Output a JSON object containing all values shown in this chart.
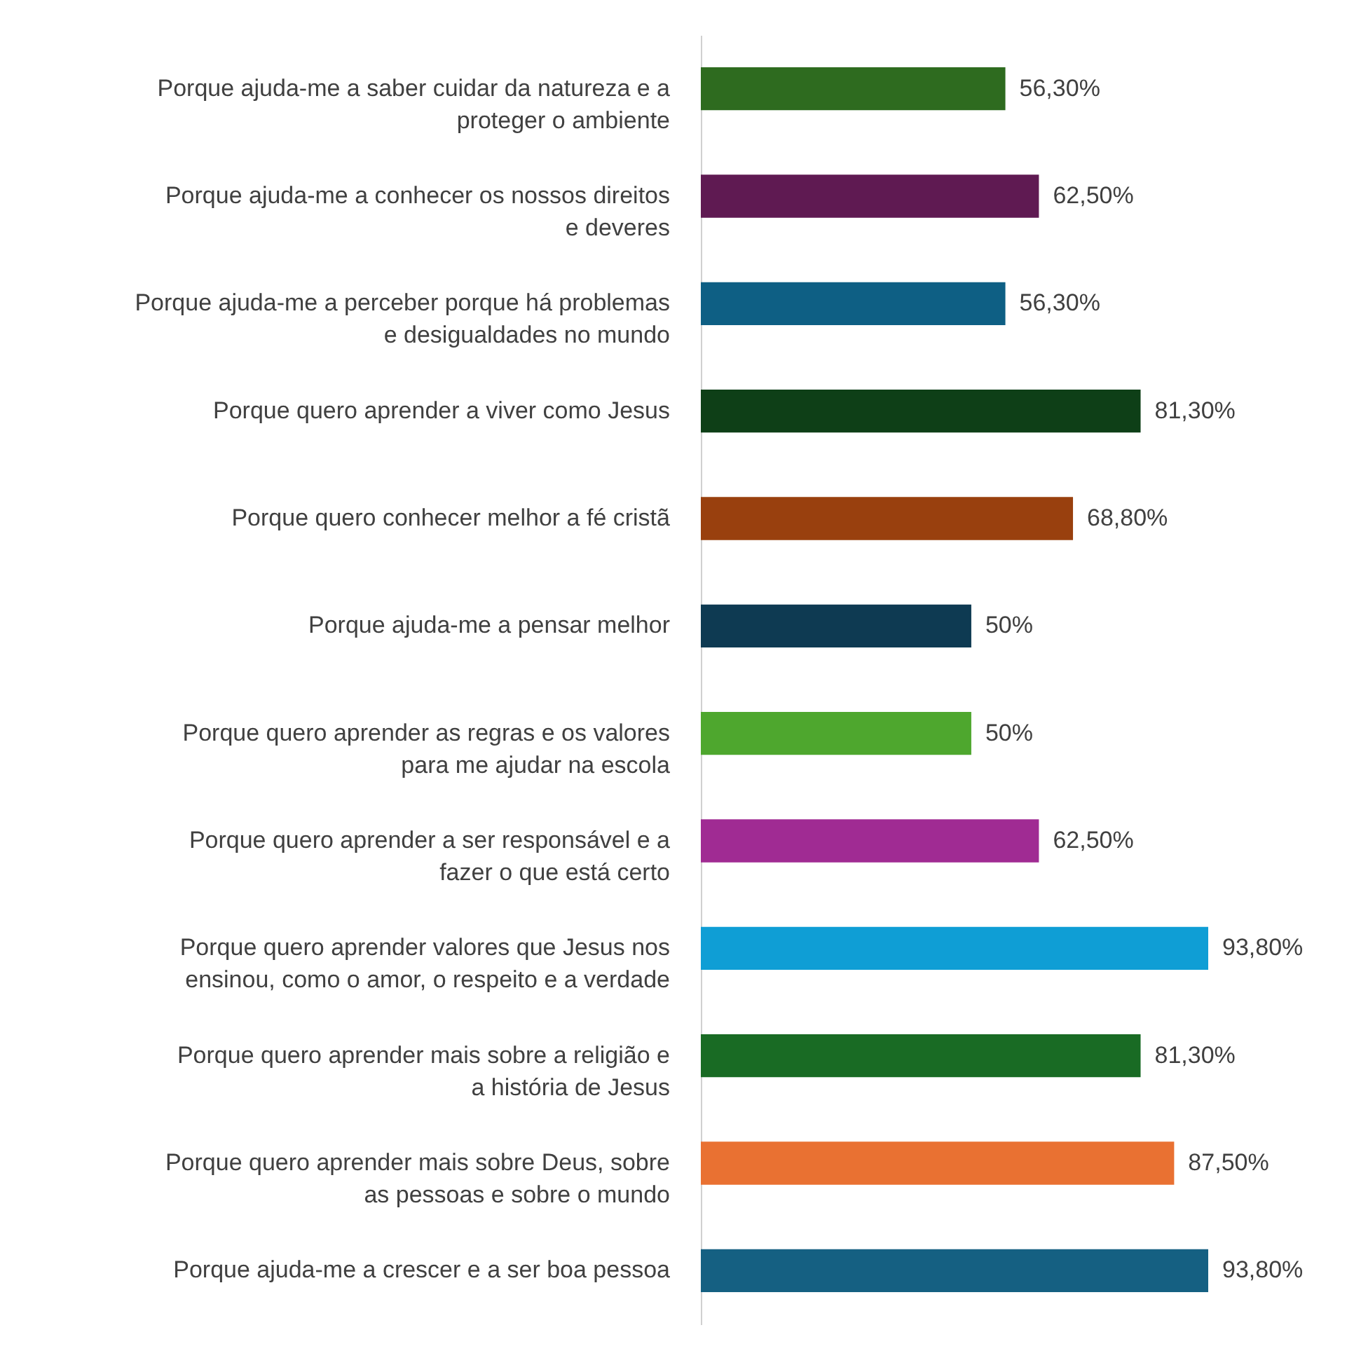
{
  "chart_data": {
    "type": "bar",
    "orientation": "horizontal",
    "categories": [
      "Porque ajuda-me a saber cuidar da natureza e a proteger o ambiente",
      "Porque ajuda-me a conhecer os nossos direitos e deveres",
      "Porque ajuda-me a perceber porque há problemas e desigualdades no mundo",
      "Porque quero aprender a viver como Jesus",
      "Porque quero conhecer melhor a fé cristã",
      "Porque ajuda-me a pensar melhor",
      "Porque quero aprender as regras e os valores para me ajudar na escola",
      "Porque quero aprender a ser responsável e a fazer o que está certo",
      "Porque quero aprender valores que Jesus nos ensinou, como o amor, o respeito e a verdade",
      "Porque quero aprender mais sobre a religião e a história de Jesus",
      "Porque quero aprender mais sobre Deus, sobre as pessoas e sobre o mundo",
      "Porque ajuda-me a crescer e a ser boa pessoa"
    ],
    "values": [
      56.3,
      62.5,
      56.3,
      81.3,
      68.8,
      50,
      50,
      62.5,
      93.8,
      81.3,
      87.5,
      93.8
    ],
    "value_labels": [
      "56,30%",
      "62,50%",
      "56,30%",
      "81,30%",
      "68,80%",
      "50%",
      "50%",
      "62,50%",
      "93,80%",
      "81,30%",
      "87,50%",
      "93,80%"
    ],
    "colors": [
      "#2e6b1f",
      "#5f1a52",
      "#0e5f84",
      "#0e3f17",
      "#99400e",
      "#0e3a52",
      "#4ea72e",
      "#a02b93",
      "#0f9ed5",
      "#196b24",
      "#e97132",
      "#156082"
    ]
  }
}
